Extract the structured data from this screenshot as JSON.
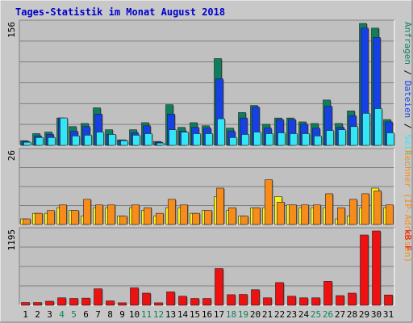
{
  "title": "Tages-Statistik im Monat August 2018",
  "colors": {
    "frame_bg": "#C8C8C8",
    "plot_bg": "#C0C0C0",
    "grid": "#808080",
    "border_dark": "#808080",
    "border_light": "#FFFFFF",
    "title": "#0000CC",
    "anfragen": "#0E7F5C",
    "dateien": "#1640E6",
    "seiten": "#33E6F5",
    "rechner": "#F7F21E",
    "besuche": "#F78C1A",
    "kb": "#EE1111",
    "weekend_label": "#0E7F5C",
    "weekday_label": "#000000"
  },
  "chart_data": [
    {
      "type": "bar",
      "panel": "top",
      "ymax_label": "156",
      "ylim": [
        0,
        156
      ],
      "legend": [
        {
          "text": "Anfragen",
          "color": "#0E7F5C"
        },
        {
          "text": " / ",
          "color": "#000000"
        },
        {
          "text": "Dateien",
          "color": "#1640E6"
        },
        {
          "text": " / ",
          "color": "#000000"
        },
        {
          "text": "Seiten",
          "color": "#33E6F5"
        }
      ],
      "categories": [
        "1",
        "2",
        "3",
        "4",
        "5",
        "6",
        "7",
        "8",
        "9",
        "10",
        "11",
        "12",
        "13",
        "14",
        "15",
        "16",
        "17",
        "18",
        "19",
        "20",
        "21",
        "22",
        "23",
        "24",
        "25",
        "26",
        "27",
        "28",
        "29",
        "30",
        "31"
      ],
      "series": [
        {
          "name": "Anfragen",
          "values": [
            6,
            15,
            17,
            35,
            24,
            28,
            48,
            20,
            7,
            20,
            29,
            5,
            52,
            23,
            29,
            25,
            111,
            22,
            42,
            51,
            27,
            35,
            35,
            30,
            28,
            58,
            28,
            44,
            156,
            150,
            33
          ]
        },
        {
          "name": "Dateien",
          "values": [
            5,
            12,
            14,
            35,
            18,
            24,
            40,
            14,
            7,
            16,
            25,
            4,
            40,
            18,
            23,
            22,
            85,
            18,
            35,
            49,
            22,
            33,
            33,
            27,
            22,
            50,
            23,
            38,
            150,
            138,
            30
          ]
        },
        {
          "name": "Seiten",
          "values": [
            4,
            10,
            10,
            35,
            12,
            13,
            17,
            14,
            6,
            13,
            15,
            3,
            20,
            17,
            15,
            15,
            34,
            10,
            14,
            17,
            15,
            16,
            15,
            15,
            12,
            19,
            20,
            24,
            41,
            47,
            16
          ]
        }
      ],
      "weekend_days": [
        "4",
        "5",
        "11",
        "12",
        "18",
        "19",
        "25",
        "26"
      ]
    },
    {
      "type": "bar",
      "panel": "middle",
      "ymax_label": "26",
      "ylim": [
        0,
        26
      ],
      "legend": [
        {
          "text": "Rechner (IP-Adressen)",
          "color": "#F78C1A"
        }
      ],
      "categories": [
        "1",
        "2",
        "3",
        "4",
        "5",
        "6",
        "7",
        "8",
        "9",
        "10",
        "11",
        "12",
        "13",
        "14",
        "15",
        "16",
        "17",
        "18",
        "19",
        "20",
        "21",
        "22",
        "23",
        "24",
        "25",
        "26",
        "27",
        "28",
        "29",
        "30",
        "31"
      ],
      "series": [
        {
          "name": "Rechner (IP-Adressen)",
          "values": [
            2,
            4,
            4,
            6,
            5,
            3,
            6,
            6,
            3,
            6,
            5,
            3,
            6,
            6,
            4,
            5,
            10,
            5,
            3,
            6,
            6,
            10,
            7,
            6,
            6,
            6,
            2,
            3,
            6,
            13,
            6
          ]
        },
        {
          "name": "",
          "values": [
            2,
            4,
            5,
            7,
            5,
            9,
            7,
            7,
            3,
            7,
            6,
            4,
            9,
            7,
            4,
            5,
            13,
            6,
            3,
            6,
            16,
            8,
            7,
            7,
            7,
            11,
            6,
            9,
            11,
            12,
            7
          ]
        }
      ]
    },
    {
      "type": "bar",
      "panel": "bottom",
      "ymax_label": "1195",
      "ylim": [
        0,
        1195
      ],
      "legend": [
        {
          "text": "kB F",
          "color": "#EE1111"
        }
      ],
      "categories": [
        "1",
        "2",
        "3",
        "4",
        "5",
        "6",
        "7",
        "8",
        "9",
        "10",
        "11",
        "12",
        "13",
        "14",
        "15",
        "16",
        "17",
        "18",
        "19",
        "20",
        "21",
        "22",
        "23",
        "24",
        "25",
        "26",
        "27",
        "28",
        "29",
        "30",
        "31"
      ],
      "series": [
        {
          "name": "kB F",
          "values": [
            45,
            45,
            65,
            120,
            110,
            115,
            265,
            70,
            40,
            280,
            195,
            40,
            215,
            145,
            110,
            110,
            590,
            170,
            175,
            250,
            120,
            365,
            145,
            120,
            120,
            385,
            155,
            195,
            1130,
            1195,
            165
          ]
        }
      ]
    }
  ]
}
